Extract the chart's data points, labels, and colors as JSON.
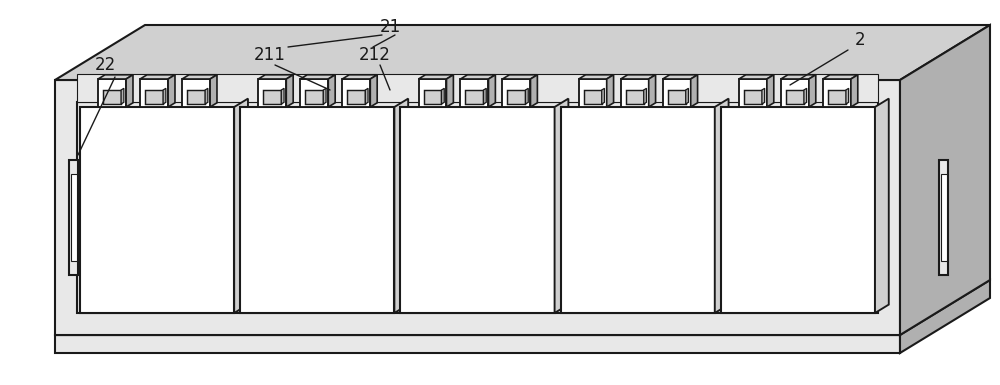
{
  "bg_color": "#ffffff",
  "line_color": "#1a1a1a",
  "lw": 1.5,
  "lw_thin": 0.8,
  "white": "#ffffff",
  "light_gray": "#e8e8e8",
  "mid_gray": "#d0d0d0",
  "dark_gray": "#b0b0b0",
  "label_fontsize": 12,
  "figsize": [
    10.0,
    3.85
  ],
  "dpi": 100,
  "num_cells": 5,
  "num_tabs": 3
}
